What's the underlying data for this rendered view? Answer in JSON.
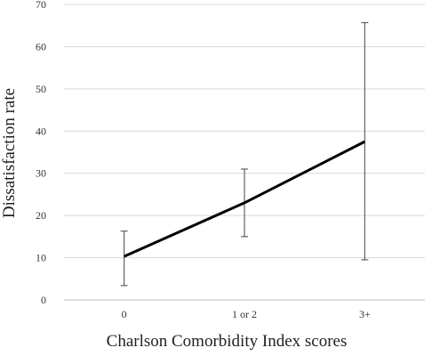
{
  "chart_data": {
    "type": "line",
    "categories": [
      "0",
      "1 or 2",
      "3+"
    ],
    "series": [
      {
        "values": [
          10.3,
          23.0,
          37.5
        ],
        "error_upper": [
          16.3,
          31.0,
          65.7
        ],
        "error_lower": [
          3.4,
          15.0,
          9.5
        ],
        "color": "#000000"
      }
    ],
    "xlabel": "Charlson Comorbidity Index scores",
    "ylabel": "Dissatisfaction rate",
    "ylim": [
      0,
      70
    ],
    "yticks": [
      0,
      10,
      20,
      30,
      40,
      50,
      60,
      70
    ],
    "grid": true
  }
}
